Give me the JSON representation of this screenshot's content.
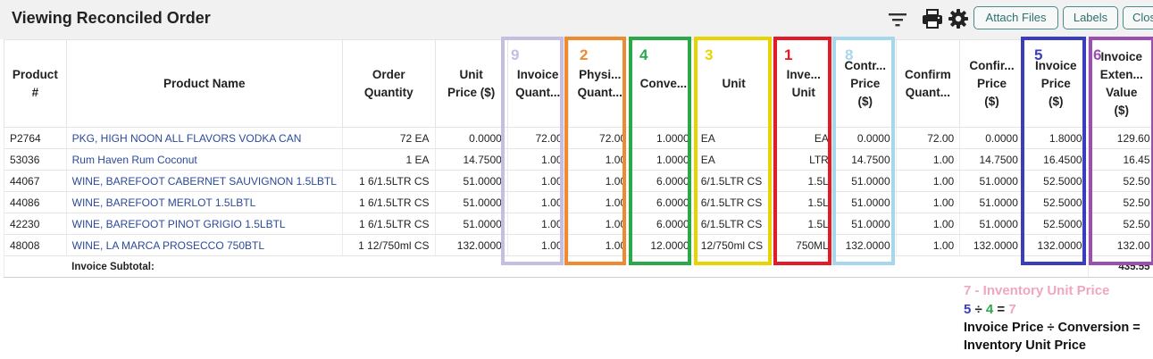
{
  "header": {
    "title": "Viewing Reconciled Order",
    "buttons": {
      "attach": "Attach Files",
      "labels": "Labels",
      "close": "Clos"
    },
    "icons": [
      "filter-icon",
      "print-icon",
      "gear-icon"
    ]
  },
  "table": {
    "columns": [
      [
        "Product",
        "#"
      ],
      [
        "Product Name"
      ],
      [
        "Order",
        "Quantity"
      ],
      [
        "Unit",
        "Price ($)"
      ],
      [
        "Invoice",
        "Quant..."
      ],
      [
        "Physi...",
        "Quant..."
      ],
      [
        "Conve..."
      ],
      [
        "Unit"
      ],
      [
        "Inve...",
        "Unit"
      ],
      [
        "Contr...",
        "Price",
        "($)"
      ],
      [
        "Confirm",
        "Quant..."
      ],
      [
        "Confir...",
        "Price",
        "($)"
      ],
      [
        "Invoice",
        "Price",
        "($)"
      ],
      [
        "Invoice",
        "Exten...",
        "Value",
        "($)"
      ]
    ],
    "rows": [
      [
        "P2764",
        "PKG, HIGH NOON ALL FLAVORS VODKA CAN",
        "72 EA",
        "0.0000",
        "72.00",
        "72.00",
        "1.0000",
        "EA",
        "EA",
        "0.0000",
        "72.00",
        "0.0000",
        "1.8000",
        "129.60"
      ],
      [
        "53036",
        "Rum Haven Rum Coconut",
        "1 EA",
        "14.7500",
        "1.00",
        "1.00",
        "1.0000",
        "EA",
        "LTR",
        "14.7500",
        "1.00",
        "14.7500",
        "16.4500",
        "16.45"
      ],
      [
        "44067",
        "WINE, BAREFOOT CABERNET SAUVIGNON 1.5LBTL",
        "1 6/1.5LTR CS",
        "51.0000",
        "1.00",
        "1.00",
        "6.0000",
        "6/1.5LTR CS",
        "1.5L",
        "51.0000",
        "1.00",
        "51.0000",
        "52.5000",
        "52.50"
      ],
      [
        "44086",
        "WINE, BAREFOOT MERLOT 1.5LBTL",
        "1 6/1.5LTR CS",
        "51.0000",
        "1.00",
        "1.00",
        "6.0000",
        "6/1.5LTR CS",
        "1.5L",
        "51.0000",
        "1.00",
        "51.0000",
        "52.5000",
        "52.50"
      ],
      [
        "42230",
        "WINE, BAREFOOT PINOT GRIGIO 1.5LBTL",
        "1 6/1.5LTR CS",
        "51.0000",
        "1.00",
        "1.00",
        "6.0000",
        "6/1.5LTR CS",
        "1.5L",
        "51.0000",
        "1.00",
        "51.0000",
        "52.5000",
        "52.50"
      ],
      [
        "48008",
        "WINE, LA MARCA PROSECCO 750BTL",
        "1 12/750ml CS",
        "132.0000",
        "1.00",
        "1.00",
        "12.0000",
        "12/750ml CS",
        "750ML",
        "132.0000",
        "1.00",
        "132.0000",
        "132.0000",
        "132.00"
      ]
    ],
    "subtotal": {
      "label": "Invoice Subtotal:",
      "value": "435.55"
    }
  },
  "annotations": [
    {
      "number": "9",
      "color": "#c6bde3"
    },
    {
      "number": "2",
      "color": "#f08a30"
    },
    {
      "number": "4",
      "color": "#2aa84a"
    },
    {
      "number": "3",
      "color": "#e8d400"
    },
    {
      "number": "1",
      "color": "#e21b26"
    },
    {
      "number": "8",
      "color": "#a6d7ea"
    },
    {
      "number": "5",
      "color": "#3a3dbd"
    },
    {
      "number": "6",
      "color": "#9b4fb0"
    }
  ],
  "notes": {
    "line1": "7 - Inventory Unit Price",
    "eq_a": "5",
    "eq_div": " ÷ ",
    "eq_b": "4",
    "eq_eq": " = ",
    "eq_c": "7",
    "line3": "Invoice Price ÷ Conversion =",
    "line4": "Inventory Unit Price"
  }
}
